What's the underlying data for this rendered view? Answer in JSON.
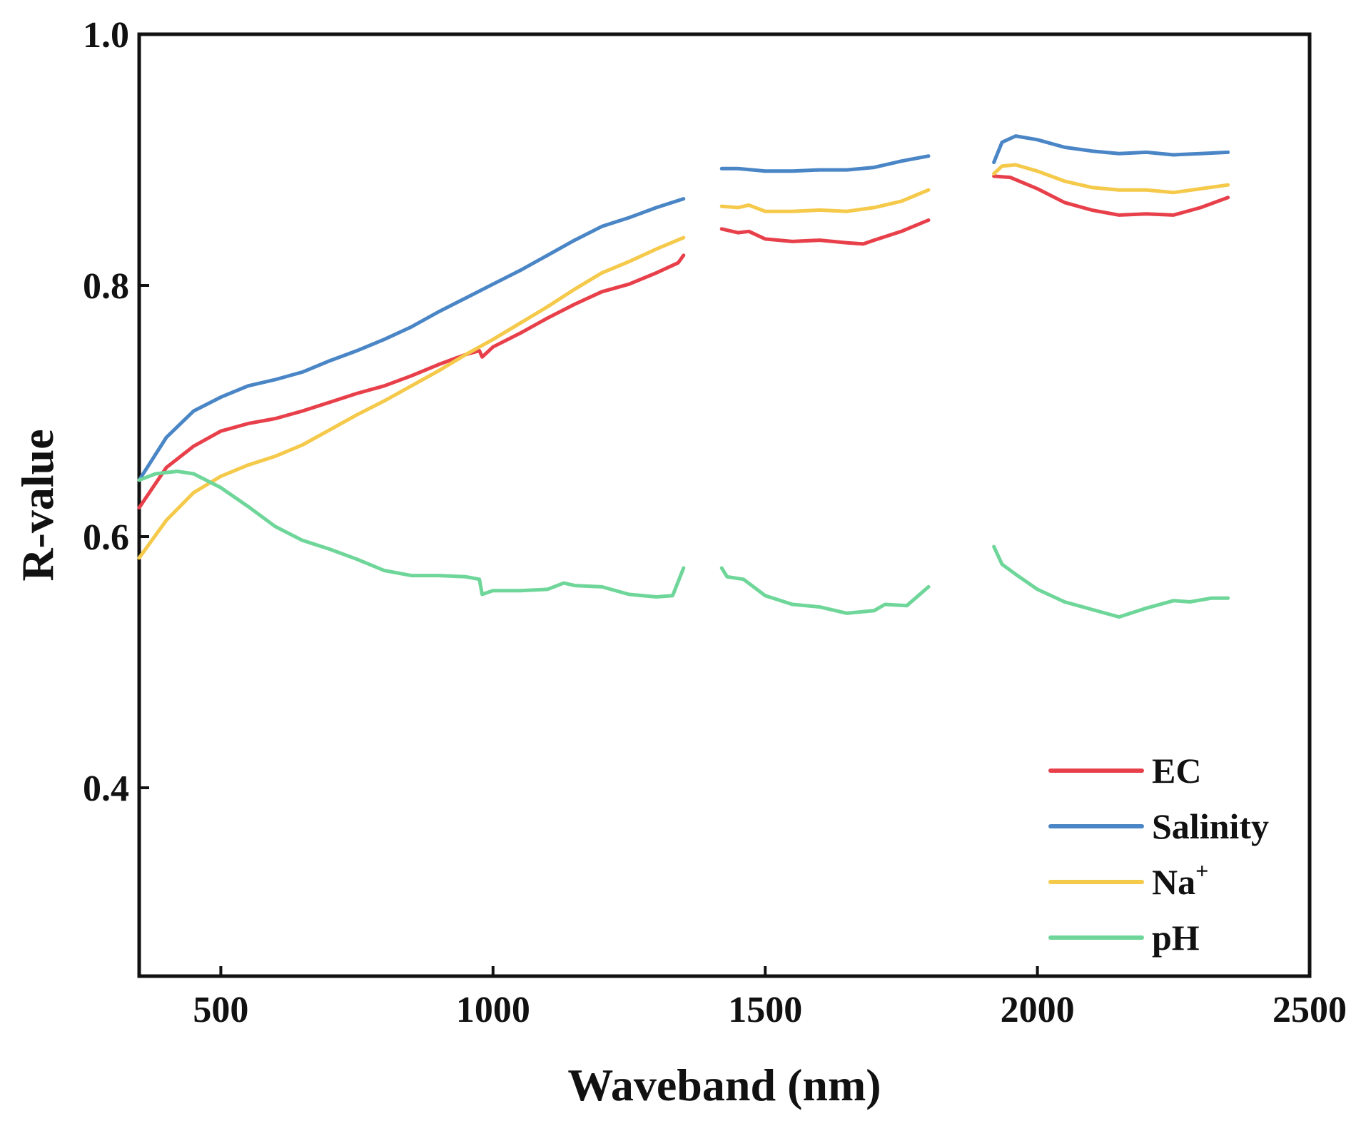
{
  "chart_data": {
    "type": "line",
    "title": "",
    "xlabel": "Waveband (nm)",
    "ylabel": "R-value",
    "xlim": [
      350,
      2500
    ],
    "ylim": [
      0.25,
      1.0
    ],
    "xticks": [
      500,
      1000,
      1500,
      2000,
      2500
    ],
    "yticks": [
      0.4,
      0.6,
      0.8,
      1.0
    ],
    "xtick_labels": [
      "500",
      "1000",
      "1500",
      "2000",
      "2500"
    ],
    "ytick_labels": [
      "0.4",
      "0.6",
      "0.8",
      "1.0"
    ],
    "grid": false,
    "legend_position": "bottom-right",
    "series": [
      {
        "name": "EC",
        "label_main": "EC",
        "label_sup": "",
        "color": "#e8404a",
        "segments": [
          [
            [
              350,
              0.623
            ],
            [
              400,
              0.655
            ],
            [
              450,
              0.672
            ],
            [
              500,
              0.684
            ],
            [
              550,
              0.69
            ],
            [
              600,
              0.694
            ],
            [
              650,
              0.7
            ],
            [
              700,
              0.707
            ],
            [
              750,
              0.714
            ],
            [
              800,
              0.72
            ],
            [
              850,
              0.728
            ],
            [
              900,
              0.737
            ],
            [
              950,
              0.745
            ],
            [
              975,
              0.748
            ],
            [
              980,
              0.743
            ],
            [
              1000,
              0.751
            ],
            [
              1050,
              0.762
            ],
            [
              1100,
              0.774
            ],
            [
              1150,
              0.785
            ],
            [
              1200,
              0.795
            ],
            [
              1250,
              0.801
            ],
            [
              1300,
              0.81
            ],
            [
              1340,
              0.818
            ],
            [
              1350,
              0.824
            ]
          ],
          [
            [
              1420,
              0.845
            ],
            [
              1450,
              0.842
            ],
            [
              1470,
              0.843
            ],
            [
              1500,
              0.837
            ],
            [
              1550,
              0.835
            ],
            [
              1600,
              0.836
            ],
            [
              1650,
              0.834
            ],
            [
              1680,
              0.833
            ],
            [
              1700,
              0.836
            ],
            [
              1750,
              0.843
            ],
            [
              1800,
              0.852
            ]
          ],
          [
            [
              1920,
              0.887
            ],
            [
              1950,
              0.886
            ],
            [
              2000,
              0.877
            ],
            [
              2050,
              0.866
            ],
            [
              2100,
              0.86
            ],
            [
              2150,
              0.856
            ],
            [
              2200,
              0.857
            ],
            [
              2250,
              0.856
            ],
            [
              2300,
              0.862
            ],
            [
              2350,
              0.87
            ]
          ]
        ]
      },
      {
        "name": "Salinity",
        "label_main": "Salinity",
        "label_sup": "",
        "color": "#4a86c6",
        "segments": [
          [
            [
              350,
              0.645
            ],
            [
              400,
              0.679
            ],
            [
              450,
              0.7
            ],
            [
              500,
              0.711
            ],
            [
              550,
              0.72
            ],
            [
              600,
              0.725
            ],
            [
              650,
              0.731
            ],
            [
              700,
              0.74
            ],
            [
              750,
              0.748
            ],
            [
              800,
              0.757
            ],
            [
              850,
              0.767
            ],
            [
              900,
              0.779
            ],
            [
              950,
              0.79
            ],
            [
              1000,
              0.801
            ],
            [
              1050,
              0.812
            ],
            [
              1100,
              0.824
            ],
            [
              1150,
              0.836
            ],
            [
              1200,
              0.847
            ],
            [
              1250,
              0.854
            ],
            [
              1300,
              0.862
            ],
            [
              1350,
              0.869
            ]
          ],
          [
            [
              1420,
              0.893
            ],
            [
              1450,
              0.893
            ],
            [
              1500,
              0.891
            ],
            [
              1550,
              0.891
            ],
            [
              1600,
              0.892
            ],
            [
              1650,
              0.892
            ],
            [
              1700,
              0.894
            ],
            [
              1750,
              0.899
            ],
            [
              1800,
              0.903
            ]
          ],
          [
            [
              1920,
              0.898
            ],
            [
              1935,
              0.914
            ],
            [
              1960,
              0.919
            ],
            [
              2000,
              0.916
            ],
            [
              2050,
              0.91
            ],
            [
              2100,
              0.907
            ],
            [
              2150,
              0.905
            ],
            [
              2200,
              0.906
            ],
            [
              2250,
              0.904
            ],
            [
              2300,
              0.905
            ],
            [
              2350,
              0.906
            ]
          ]
        ]
      },
      {
        "name": "Na+",
        "label_main": "Na",
        "label_sup": "+",
        "color": "#f5c94a",
        "segments": [
          [
            [
              350,
              0.583
            ],
            [
              400,
              0.613
            ],
            [
              450,
              0.635
            ],
            [
              500,
              0.648
            ],
            [
              550,
              0.657
            ],
            [
              600,
              0.664
            ],
            [
              650,
              0.673
            ],
            [
              700,
              0.685
            ],
            [
              750,
              0.697
            ],
            [
              800,
              0.708
            ],
            [
              850,
              0.72
            ],
            [
              900,
              0.732
            ],
            [
              950,
              0.745
            ],
            [
              1000,
              0.757
            ],
            [
              1050,
              0.77
            ],
            [
              1100,
              0.783
            ],
            [
              1150,
              0.797
            ],
            [
              1200,
              0.81
            ],
            [
              1250,
              0.819
            ],
            [
              1300,
              0.829
            ],
            [
              1350,
              0.838
            ]
          ],
          [
            [
              1420,
              0.863
            ],
            [
              1450,
              0.862
            ],
            [
              1470,
              0.864
            ],
            [
              1500,
              0.859
            ],
            [
              1550,
              0.859
            ],
            [
              1600,
              0.86
            ],
            [
              1650,
              0.859
            ],
            [
              1700,
              0.862
            ],
            [
              1750,
              0.867
            ],
            [
              1800,
              0.876
            ]
          ],
          [
            [
              1920,
              0.889
            ],
            [
              1935,
              0.895
            ],
            [
              1960,
              0.896
            ],
            [
              2000,
              0.891
            ],
            [
              2050,
              0.883
            ],
            [
              2100,
              0.878
            ],
            [
              2150,
              0.876
            ],
            [
              2200,
              0.876
            ],
            [
              2250,
              0.874
            ],
            [
              2300,
              0.877
            ],
            [
              2350,
              0.88
            ]
          ]
        ]
      },
      {
        "name": "pH",
        "label_main": "pH",
        "label_sup": "",
        "color": "#6fd69a",
        "segments": [
          [
            [
              350,
              0.645
            ],
            [
              380,
              0.65
            ],
            [
              420,
              0.652
            ],
            [
              450,
              0.65
            ],
            [
              500,
              0.639
            ],
            [
              550,
              0.624
            ],
            [
              600,
              0.608
            ],
            [
              650,
              0.597
            ],
            [
              700,
              0.59
            ],
            [
              750,
              0.582
            ],
            [
              800,
              0.573
            ],
            [
              850,
              0.569
            ],
            [
              900,
              0.569
            ],
            [
              950,
              0.568
            ],
            [
              975,
              0.566
            ],
            [
              980,
              0.554
            ],
            [
              1000,
              0.557
            ],
            [
              1050,
              0.557
            ],
            [
              1100,
              0.558
            ],
            [
              1130,
              0.563
            ],
            [
              1150,
              0.561
            ],
            [
              1200,
              0.56
            ],
            [
              1250,
              0.554
            ],
            [
              1300,
              0.552
            ],
            [
              1330,
              0.553
            ],
            [
              1350,
              0.575
            ]
          ],
          [
            [
              1420,
              0.575
            ],
            [
              1430,
              0.568
            ],
            [
              1460,
              0.566
            ],
            [
              1500,
              0.553
            ],
            [
              1550,
              0.546
            ],
            [
              1600,
              0.544
            ],
            [
              1650,
              0.539
            ],
            [
              1700,
              0.541
            ],
            [
              1720,
              0.546
            ],
            [
              1760,
              0.545
            ],
            [
              1800,
              0.56
            ]
          ],
          [
            [
              1920,
              0.592
            ],
            [
              1935,
              0.578
            ],
            [
              1960,
              0.57
            ],
            [
              2000,
              0.558
            ],
            [
              2050,
              0.548
            ],
            [
              2100,
              0.542
            ],
            [
              2150,
              0.536
            ],
            [
              2200,
              0.543
            ],
            [
              2250,
              0.549
            ],
            [
              2280,
              0.548
            ],
            [
              2320,
              0.551
            ],
            [
              2350,
              0.551
            ]
          ]
        ]
      }
    ]
  }
}
